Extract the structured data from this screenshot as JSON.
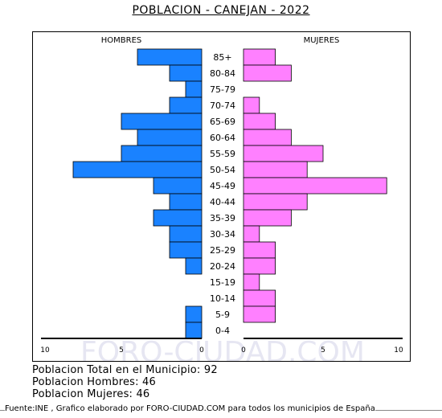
{
  "title": "POBLACION - CANEJAN - 2022",
  "summary": {
    "total": "Poblacion Total en el Municipio: 92",
    "hombres": "Poblacion Hombres: 46",
    "mujeres": "Poblacion Mujeres: 46"
  },
  "footer": "Fuente:INE , Grafico elaborado por FORO-CIUDAD.COM para todos los municipios de España",
  "watermark": "FORO-CIUDAD.COM",
  "colors": {
    "hombres": "#1a82ff",
    "mujeres": "#ff80ff"
  },
  "chart_data": {
    "type": "bar",
    "orientation": "horizontal-pyramid",
    "categories": [
      "85+",
      "80-84",
      "75-79",
      "70-74",
      "65-69",
      "60-64",
      "55-59",
      "50-54",
      "45-49",
      "40-44",
      "35-39",
      "30-34",
      "25-29",
      "20-24",
      "15-19",
      "10-14",
      "5-9",
      "0-4"
    ],
    "series": [
      {
        "name": "HOMBRES",
        "values": [
          4,
          2,
          1,
          2,
          5,
          4,
          5,
          8,
          3,
          2,
          3,
          2,
          2,
          1,
          0,
          0,
          1,
          1
        ]
      },
      {
        "name": "MUJERES",
        "values": [
          2,
          3,
          0,
          1,
          2,
          3,
          5,
          4,
          9,
          4,
          3,
          1,
          2,
          2,
          1,
          2,
          2,
          0
        ]
      }
    ],
    "xlim": [
      0,
      10
    ],
    "ticks": [
      "10",
      "5",
      "0",
      "0",
      "5",
      "10"
    ]
  }
}
